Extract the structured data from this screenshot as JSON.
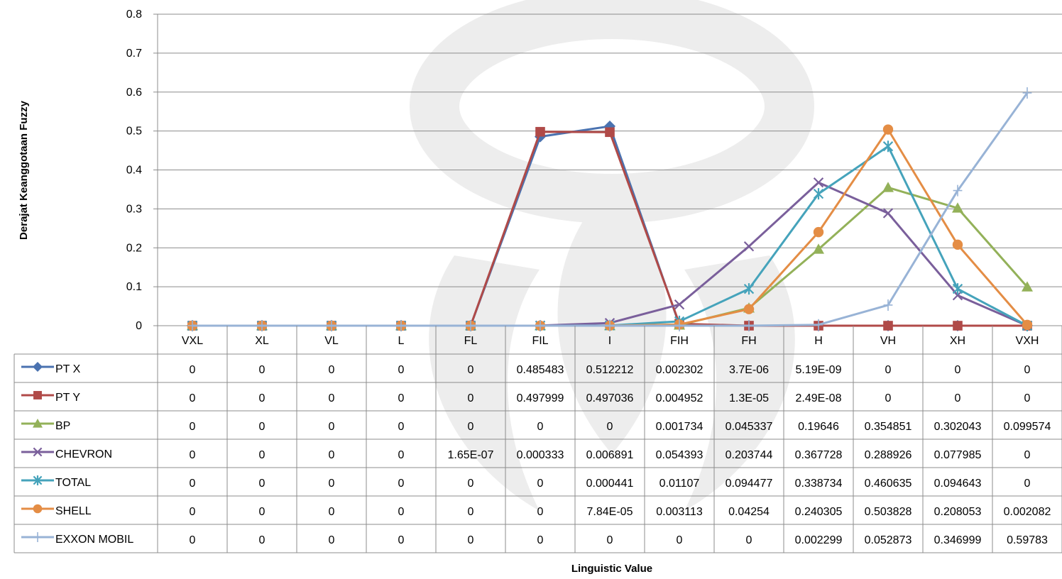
{
  "chart_data": {
    "type": "line",
    "title": "",
    "xlabel": "Linguistic Value",
    "ylabel": "Derajat Keanggotaan Fuzzy",
    "ylim": [
      0,
      0.8
    ],
    "yticks": [
      0,
      0.1,
      0.2,
      0.3,
      0.4,
      0.5,
      0.6,
      0.7,
      0.8
    ],
    "ytick_labels": [
      "0",
      "0.1",
      "0.2",
      "0.3",
      "0.4",
      "0.5",
      "0.6",
      "0.7",
      "0.8"
    ],
    "grid": true,
    "legend": "data-table",
    "categories": [
      "VXL",
      "XL",
      "VL",
      "L",
      "FL",
      "FIL",
      "I",
      "FIH",
      "FH",
      "H",
      "VH",
      "XH",
      "VXH"
    ],
    "series": [
      {
        "name": "PT X",
        "color": "#4a72b0",
        "marker": "diamond",
        "values": [
          0,
          0,
          0,
          0,
          0,
          0.485483,
          0.512212,
          0.002302,
          3.7e-06,
          5.19e-09,
          0,
          0,
          0
        ],
        "labels": [
          "0",
          "0",
          "0",
          "0",
          "0",
          "0.485483",
          "0.512212",
          "0.002302",
          "3.7E-06",
          "5.19E-09",
          "0",
          "0",
          "0"
        ]
      },
      {
        "name": "PT Y",
        "color": "#b04a48",
        "marker": "square",
        "values": [
          0,
          0,
          0,
          0,
          0,
          0.497999,
          0.497036,
          0.004952,
          1.3e-05,
          2.49e-08,
          0,
          0,
          0
        ],
        "labels": [
          "0",
          "0",
          "0",
          "0",
          "0",
          "0.497999",
          "0.497036",
          "0.004952",
          "1.3E-05",
          "2.49E-08",
          "0",
          "0",
          "0"
        ]
      },
      {
        "name": "BP",
        "color": "#93b159",
        "marker": "triangle",
        "values": [
          0,
          0,
          0,
          0,
          0,
          0,
          0,
          0.001734,
          0.045337,
          0.19646,
          0.354851,
          0.302043,
          0.099574
        ],
        "labels": [
          "0",
          "0",
          "0",
          "0",
          "0",
          "0",
          "0",
          "0.001734",
          "0.045337",
          "0.19646",
          "0.354851",
          "0.302043",
          "0.099574"
        ]
      },
      {
        "name": "CHEVRON",
        "color": "#7a5f9b",
        "marker": "x",
        "values": [
          0,
          0,
          0,
          0,
          1.65e-07,
          0.000333,
          0.006891,
          0.054393,
          0.203744,
          0.367728,
          0.288926,
          0.077985,
          0
        ],
        "labels": [
          "0",
          "0",
          "0",
          "0",
          "1.65E-07",
          "0.000333",
          "0.006891",
          "0.054393",
          "0.203744",
          "0.367728",
          "0.288926",
          "0.077985",
          "0"
        ]
      },
      {
        "name": "TOTAL",
        "color": "#45a3bb",
        "marker": "star",
        "values": [
          0,
          0,
          0,
          0,
          0,
          0,
          0.000441,
          0.01107,
          0.094477,
          0.338734,
          0.460635,
          0.094643,
          0
        ],
        "labels": [
          "0",
          "0",
          "0",
          "0",
          "0",
          "0",
          "0.000441",
          "0.01107",
          "0.094477",
          "0.338734",
          "0.460635",
          "0.094643",
          "0"
        ]
      },
      {
        "name": "SHELL",
        "color": "#e48d45",
        "marker": "circle",
        "values": [
          0,
          0,
          0,
          0,
          0,
          0,
          7.84e-05,
          0.003113,
          0.04254,
          0.240305,
          0.503828,
          0.208053,
          0.002082
        ],
        "labels": [
          "0",
          "0",
          "0",
          "0",
          "0",
          "0",
          "7.84E-05",
          "0.003113",
          "0.04254",
          "0.240305",
          "0.503828",
          "0.208053",
          "0.002082"
        ]
      },
      {
        "name": "EXXON MOBIL",
        "color": "#98b3d6",
        "marker": "plus",
        "values": [
          0,
          0,
          0,
          0,
          0,
          0,
          0,
          0,
          0,
          0.002299,
          0.052873,
          0.346999,
          0.59783
        ],
        "labels": [
          "0",
          "0",
          "0",
          "0",
          "0",
          "0",
          "0",
          "0",
          "0",
          "0.002299",
          "0.052873",
          "0.346999",
          "0.59783"
        ]
      }
    ]
  }
}
